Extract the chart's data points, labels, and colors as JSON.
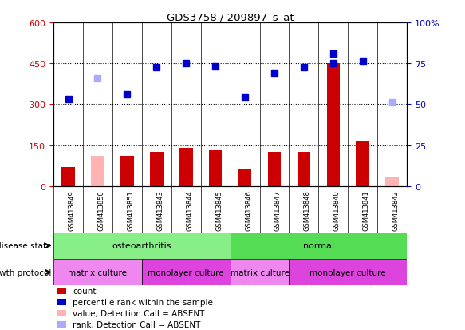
{
  "title": "GDS3758 / 209897_s_at",
  "samples": [
    "GSM413849",
    "GSM413850",
    "GSM413851",
    "GSM413843",
    "GSM413844",
    "GSM413845",
    "GSM413846",
    "GSM413847",
    "GSM413848",
    "GSM413840",
    "GSM413841",
    "GSM413842"
  ],
  "count_values": [
    70,
    0,
    110,
    125,
    140,
    132,
    65,
    125,
    125,
    450,
    165,
    0
  ],
  "count_absent": [
    false,
    true,
    false,
    false,
    false,
    false,
    false,
    false,
    false,
    false,
    false,
    true
  ],
  "count_absent_values": [
    0,
    110,
    0,
    0,
    0,
    0,
    0,
    0,
    0,
    0,
    0,
    35
  ],
  "rank_values": [
    320,
    0,
    335,
    435,
    450,
    440,
    325,
    415,
    435,
    450,
    460,
    0
  ],
  "rank_absent": [
    false,
    true,
    false,
    false,
    false,
    false,
    false,
    false,
    false,
    false,
    false,
    true
  ],
  "rank_absent_values": [
    0,
    395,
    0,
    0,
    0,
    0,
    0,
    0,
    0,
    0,
    0,
    308
  ],
  "rank_high_value": 485,
  "rank_high_idx": 9,
  "ylim_left": [
    0,
    600
  ],
  "yticks_left": [
    0,
    150,
    300,
    450,
    600
  ],
  "ytick_labels_left": [
    "0",
    "150",
    "300",
    "450",
    "600"
  ],
  "yticks_right": [
    0,
    25,
    50,
    75,
    100
  ],
  "ytick_labels_right": [
    "0",
    "25",
    "50",
    "75",
    "100%"
  ],
  "bar_color": "#cc0000",
  "bar_absent_color": "#ffb3b3",
  "rank_color": "#0000cc",
  "rank_absent_color": "#aaaaff",
  "disease_state_groups": [
    {
      "label": "osteoarthritis",
      "start": 0,
      "end": 6,
      "color": "#88ee88"
    },
    {
      "label": "normal",
      "start": 6,
      "end": 12,
      "color": "#55dd55"
    }
  ],
  "growth_protocol_groups": [
    {
      "label": "matrix culture",
      "start": 0,
      "end": 3,
      "color": "#ee88ee"
    },
    {
      "label": "monolayer culture",
      "start": 3,
      "end": 6,
      "color": "#dd44dd"
    },
    {
      "label": "matrix culture",
      "start": 6,
      "end": 8,
      "color": "#ee88ee"
    },
    {
      "label": "monolayer culture",
      "start": 8,
      "end": 12,
      "color": "#dd44dd"
    }
  ],
  "disease_label": "disease state",
  "protocol_label": "growth protocol",
  "legend_items": [
    {
      "label": "count",
      "color": "#cc0000"
    },
    {
      "label": "percentile rank within the sample",
      "color": "#0000cc"
    },
    {
      "label": "value, Detection Call = ABSENT",
      "color": "#ffb3b3"
    },
    {
      "label": "rank, Detection Call = ABSENT",
      "color": "#aaaaff"
    }
  ]
}
